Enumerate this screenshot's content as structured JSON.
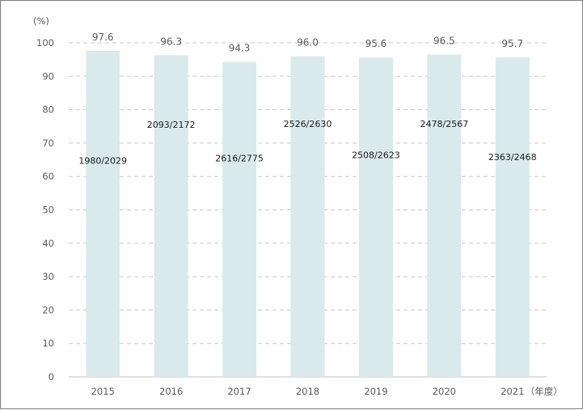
{
  "chart_data": {
    "type": "bar",
    "y_unit_label": "(%)",
    "x_unit_label": "（年度）",
    "categories": [
      "2015",
      "2016",
      "2017",
      "2018",
      "2019",
      "2020",
      "2021"
    ],
    "values": [
      97.6,
      96.3,
      94.3,
      96.0,
      95.6,
      96.5,
      95.7
    ],
    "value_labels": [
      "97.6",
      "96.3",
      "94.3",
      "96.0",
      "95.6",
      "96.5",
      "95.7"
    ],
    "inner_labels": [
      "1980/2029",
      "2093/2172",
      "2616/2775",
      "2526/2630",
      "2508/2623",
      "2478/2567",
      "2363/2468"
    ],
    "yticks": [
      0,
      10,
      20,
      30,
      40,
      50,
      60,
      70,
      80,
      90,
      100
    ],
    "ylim": [
      0,
      100
    ],
    "grid": true,
    "bar_color": "#daeaec",
    "grid_color": "#c8c8c8",
    "axis_color": "#bfbfbf"
  }
}
